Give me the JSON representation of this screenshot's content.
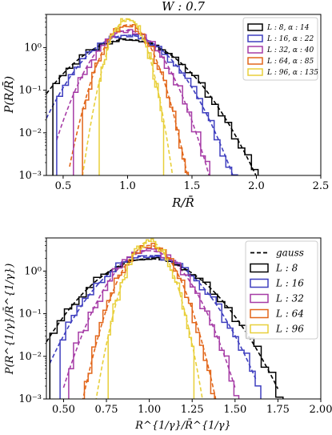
{
  "chart_data": [
    {
      "type": "line",
      "title": "W : 0.7",
      "xlabel": "R/R̄",
      "ylabel": "P(R/R̄)",
      "xscale": "linear",
      "yscale": "log",
      "xlim": [
        0.37,
        2.5
      ],
      "ylim": [
        0.001,
        6
      ],
      "xticks": [
        0.5,
        1.0,
        1.5,
        2.0,
        2.5
      ],
      "xtick_labels": [
        "0.5",
        "1.0",
        "1.5",
        "2.0",
        "2.5"
      ],
      "yticks": [
        0.001,
        0.01,
        0.1,
        1
      ],
      "ytick_labels": [
        "10⁻³",
        "10⁻²",
        "10⁻¹",
        "10⁰"
      ],
      "grid": false,
      "legend_position": "top-right",
      "legend_font_size": "small",
      "series": [
        {
          "name": "L : 8, α : 14",
          "color": "#000000",
          "mu": 1.0,
          "sigma": 0.26,
          "amp": 1.55,
          "xmin": 0.42,
          "xmax": 2.27,
          "seed": 11,
          "noise": 0.35,
          "dashed_xmin": 0.37,
          "dashed_xmax": 2.3
        },
        {
          "name": "L : 16, α : 22",
          "color": "#3f3fbf",
          "mu": 1.0,
          "sigma": 0.21,
          "amp": 1.95,
          "xmin": 0.45,
          "xmax": 2.08,
          "seed": 23,
          "noise": 0.45,
          "dashed_xmin": 0.37,
          "dashed_xmax": 2.1
        },
        {
          "name": "L : 32, α : 40",
          "color": "#a63ca6",
          "mu": 1.0,
          "sigma": 0.16,
          "amp": 2.5,
          "xmin": 0.58,
          "xmax": 1.85,
          "seed": 37,
          "noise": 0.55,
          "dashed_xmin": 0.45,
          "dashed_xmax": 1.9
        },
        {
          "name": "L : 64, α : 85",
          "color": "#e2661a",
          "mu": 1.0,
          "sigma": 0.115,
          "amp": 3.4,
          "xmin": 0.65,
          "xmax": 1.52,
          "seed": 53,
          "noise": 0.6,
          "dashed_xmin": 0.55,
          "dashed_xmax": 1.6
        },
        {
          "name": "L : 96, α : 135",
          "color": "#e8cf3a",
          "mu": 1.0,
          "sigma": 0.085,
          "amp": 4.6,
          "xmin": 0.78,
          "xmax": 1.28,
          "seed": 71,
          "noise": 0.65,
          "dashed_xmin": 0.65,
          "dashed_xmax": 1.4
        }
      ]
    },
    {
      "type": "line",
      "title": "",
      "xlabel": "R^{1/γ}/R̄^{1/γ}",
      "ylabel": "P(R^{1/γ}/R̄^{1/γ})",
      "xscale": "linear",
      "yscale": "log",
      "xlim": [
        0.4,
        2.0
      ],
      "ylim": [
        0.001,
        6
      ],
      "xticks": [
        0.5,
        0.75,
        1.0,
        1.25,
        1.5,
        1.75,
        2.0
      ],
      "xtick_labels": [
        "0.50",
        "0.75",
        "1.00",
        "1.25",
        "1.50",
        "1.75",
        "2.00"
      ],
      "yticks": [
        0.001,
        0.01,
        0.1,
        1
      ],
      "ytick_labels": [
        "10⁻³",
        "10⁻²",
        "10⁻¹",
        "10⁰"
      ],
      "grid": false,
      "legend_position": "top-right",
      "legend_font_size": "normal",
      "legend_extra": {
        "name": "gauss",
        "color": "#000000",
        "style": "dashed"
      },
      "series": [
        {
          "name": "L : 8",
          "color": "#000000",
          "mu": 1.0,
          "sigma": 0.2,
          "amp": 1.95,
          "xmin": 0.42,
          "xmax": 1.95,
          "seed": 13,
          "noise": 0.35,
          "dashed_xmin": 0.4,
          "dashed_xmax": 1.75
        },
        {
          "name": "L : 16",
          "color": "#3f3fbf",
          "mu": 1.0,
          "sigma": 0.17,
          "amp": 2.3,
          "xmin": 0.48,
          "xmax": 1.65,
          "seed": 29,
          "noise": 0.45,
          "dashed_xmin": 0.42,
          "dashed_xmax": 1.62
        },
        {
          "name": "L : 32",
          "color": "#a63ca6",
          "mu": 1.0,
          "sigma": 0.13,
          "amp": 3.0,
          "xmin": 0.53,
          "xmax": 1.55,
          "seed": 41,
          "noise": 0.55,
          "dashed_xmin": 0.5,
          "dashed_xmax": 1.5
        },
        {
          "name": "L : 64",
          "color": "#e2661a",
          "mu": 1.0,
          "sigma": 0.095,
          "amp": 4.0,
          "xmin": 0.6,
          "xmax": 1.38,
          "seed": 59,
          "noise": 0.6,
          "dashed_xmin": 0.58,
          "dashed_xmax": 1.4
        },
        {
          "name": "L : 96",
          "color": "#e8cf3a",
          "mu": 1.0,
          "sigma": 0.075,
          "amp": 5.0,
          "xmin": 0.76,
          "xmax": 1.26,
          "seed": 79,
          "noise": 0.65,
          "dashed_xmin": 0.66,
          "dashed_xmax": 1.33
        }
      ]
    }
  ]
}
